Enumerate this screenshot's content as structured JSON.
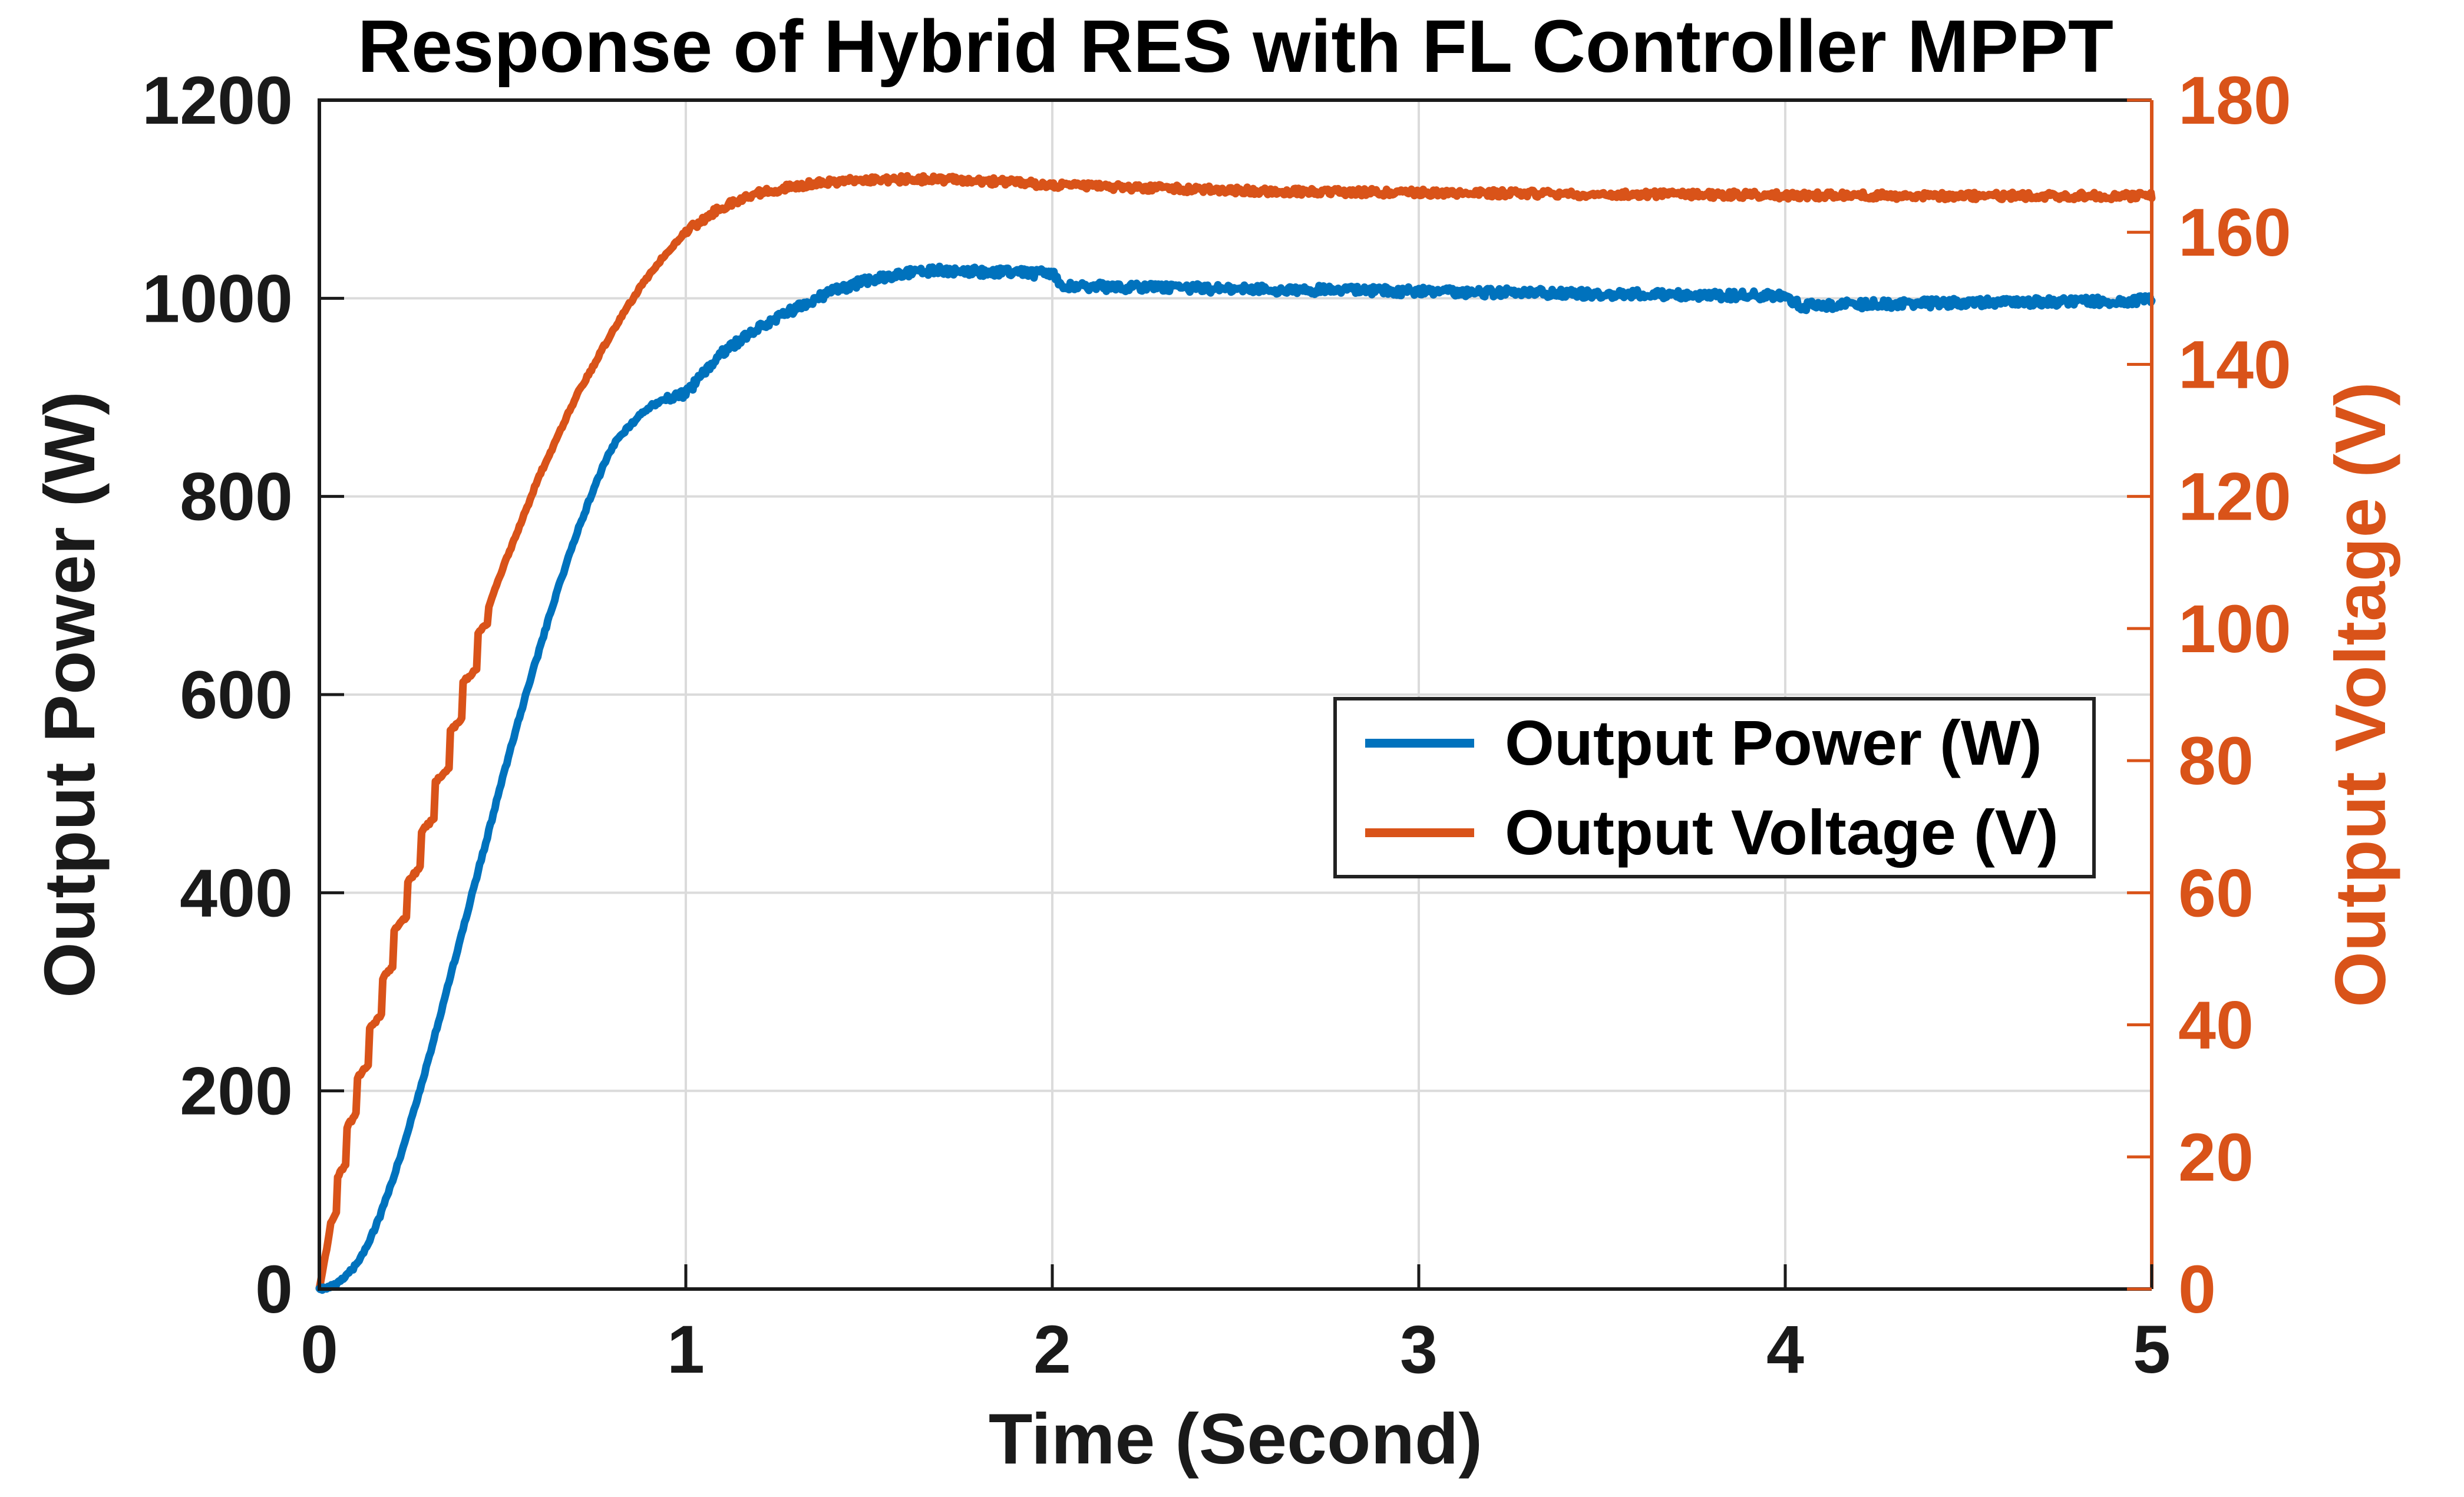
{
  "accent_colors": {
    "power_blue": "#0072BD",
    "voltage_orange": "#D95319",
    "grid_gray": "#DBDBDB",
    "axis_dark": "#1a1a1a"
  },
  "chart_data": {
    "type": "line",
    "title": "Response of Hybrid RES with FL Controller MPPT",
    "xlabel": "Time (Second)",
    "ylabel_left": "Output Power (W)",
    "ylabel_right": "Output Voltage (V)",
    "xlim": [
      0,
      5
    ],
    "ylim_left": [
      0,
      1200
    ],
    "ylim_right": [
      0,
      180
    ],
    "xticks": [
      0,
      1,
      2,
      3,
      4,
      5
    ],
    "yticks_left": [
      0,
      200,
      400,
      600,
      800,
      1000,
      1200
    ],
    "yticks_right": [
      0,
      20,
      40,
      60,
      80,
      100,
      120,
      140,
      160,
      180
    ],
    "grid": true,
    "legend_position": "middle-right",
    "series": [
      {
        "name": "Output Power (W)",
        "axis": "left",
        "color": "#0072BD",
        "points": [
          [
            0,
            0
          ],
          [
            0.05,
            6
          ],
          [
            0.1,
            25
          ],
          [
            0.15,
            60
          ],
          [
            0.2,
            110
          ],
          [
            0.25,
            170
          ],
          [
            0.3,
            235
          ],
          [
            0.35,
            305
          ],
          [
            0.4,
            375
          ],
          [
            0.45,
            445
          ],
          [
            0.5,
            515
          ],
          [
            0.55,
            582
          ],
          [
            0.6,
            645
          ],
          [
            0.65,
            705
          ],
          [
            0.7,
            760
          ],
          [
            0.75,
            808
          ],
          [
            0.8,
            850
          ],
          [
            0.85,
            872
          ],
          [
            0.9,
            890
          ],
          [
            0.95,
            898
          ],
          [
            1.0,
            905
          ],
          [
            1.05,
            925
          ],
          [
            1.1,
            945
          ],
          [
            1.15,
            958
          ],
          [
            1.2,
            970
          ],
          [
            1.25,
            980
          ],
          [
            1.3,
            990
          ],
          [
            1.35,
            999
          ],
          [
            1.4,
            1007
          ],
          [
            1.45,
            1013
          ],
          [
            1.5,
            1018
          ],
          [
            1.55,
            1022
          ],
          [
            1.6,
            1025
          ],
          [
            1.65,
            1027
          ],
          [
            1.7,
            1028
          ],
          [
            1.75,
            1028
          ],
          [
            1.8,
            1027
          ],
          [
            1.85,
            1026
          ],
          [
            1.9,
            1026
          ],
          [
            1.95,
            1025
          ],
          [
            2.0,
            1025
          ],
          [
            2.03,
            1013
          ],
          [
            2.1,
            1012
          ],
          [
            2.2,
            1011
          ],
          [
            2.4,
            1010
          ],
          [
            2.6,
            1009
          ],
          [
            2.8,
            1008
          ],
          [
            3.0,
            1007
          ],
          [
            3.2,
            1006
          ],
          [
            3.4,
            1005
          ],
          [
            3.6,
            1004
          ],
          [
            3.8,
            1003
          ],
          [
            4.0,
            1002
          ],
          [
            4.04,
            993
          ],
          [
            4.1,
            993
          ],
          [
            4.2,
            994
          ],
          [
            4.4,
            995
          ],
          [
            4.6,
            996
          ],
          [
            4.8,
            997
          ],
          [
            5.0,
            998
          ]
        ]
      },
      {
        "name": "Output Voltage (V)",
        "axis": "right",
        "color": "#D95319",
        "points": [
          [
            0,
            0
          ],
          [
            0.02,
            6
          ],
          [
            0.05,
            16
          ],
          [
            0.1,
            30
          ],
          [
            0.15,
            41
          ],
          [
            0.2,
            52
          ],
          [
            0.25,
            62
          ],
          [
            0.3,
            72
          ],
          [
            0.35,
            82
          ],
          [
            0.4,
            92
          ],
          [
            0.45,
            101
          ],
          [
            0.5,
            109
          ],
          [
            0.55,
            116
          ],
          [
            0.6,
            123
          ],
          [
            0.65,
            129
          ],
          [
            0.7,
            135
          ],
          [
            0.75,
            140
          ],
          [
            0.8,
            145
          ],
          [
            0.85,
            149.5
          ],
          [
            0.9,
            153.5
          ],
          [
            0.95,
            157
          ],
          [
            1.0,
            160
          ],
          [
            1.05,
            162
          ],
          [
            1.1,
            163.8
          ],
          [
            1.15,
            165
          ],
          [
            1.2,
            165.9
          ],
          [
            1.3,
            167
          ],
          [
            1.4,
            167.6
          ],
          [
            1.5,
            167.9
          ],
          [
            1.6,
            168
          ],
          [
            1.7,
            168
          ],
          [
            1.8,
            167.8
          ],
          [
            1.9,
            167.5
          ],
          [
            2.0,
            167.2
          ],
          [
            2.2,
            166.8
          ],
          [
            2.4,
            166.5
          ],
          [
            2.6,
            166.2
          ],
          [
            2.8,
            166.1
          ],
          [
            3.0,
            166
          ],
          [
            3.2,
            165.9
          ],
          [
            3.4,
            165.8
          ],
          [
            3.6,
            165.7
          ],
          [
            3.8,
            165.7
          ],
          [
            4.0,
            165.6
          ],
          [
            4.2,
            165.6
          ],
          [
            4.4,
            165.5
          ],
          [
            4.6,
            165.5
          ],
          [
            4.8,
            165.5
          ],
          [
            5.0,
            165.5
          ]
        ]
      }
    ]
  }
}
